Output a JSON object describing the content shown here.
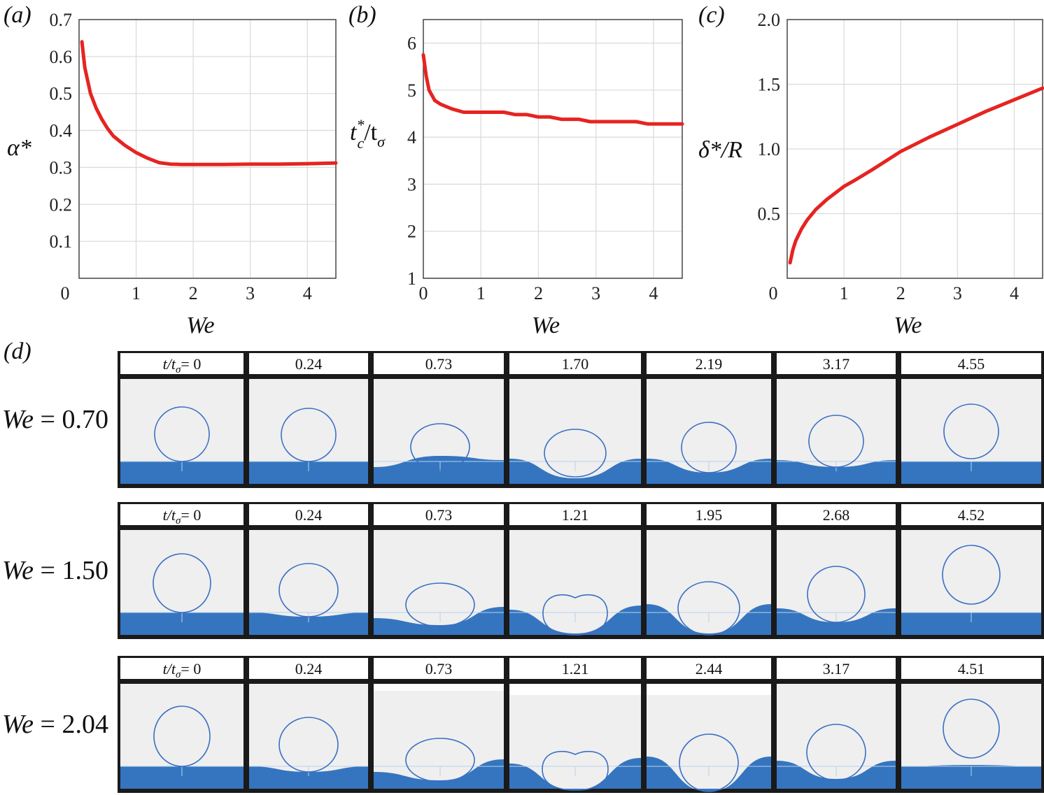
{
  "chart_data": [
    {
      "panel": "(a)",
      "type": "line",
      "xlabel": "We",
      "ylabel": "α*",
      "xlim": [
        0,
        4.5
      ],
      "ylim": [
        0,
        0.7
      ],
      "xticks": [
        "0",
        "1",
        "2",
        "3",
        "4"
      ],
      "yticks": [
        "0.1",
        "0.2",
        "0.3",
        "0.4",
        "0.5",
        "0.6",
        "0.7"
      ],
      "grid": true,
      "series": [
        {
          "color": "#e52421",
          "x": [
            0.05,
            0.1,
            0.2,
            0.3,
            0.4,
            0.5,
            0.6,
            0.8,
            1.0,
            1.2,
            1.4,
            1.6,
            1.8,
            2.0,
            2.5,
            3.0,
            3.5,
            4.0,
            4.5
          ],
          "y": [
            0.64,
            0.57,
            0.5,
            0.46,
            0.43,
            0.405,
            0.385,
            0.36,
            0.34,
            0.325,
            0.313,
            0.309,
            0.308,
            0.308,
            0.308,
            0.309,
            0.309,
            0.31,
            0.312
          ]
        }
      ]
    },
    {
      "panel": "(b)",
      "type": "line",
      "xlabel": "We",
      "ylabel": "tc*/tσ",
      "xlim": [
        0,
        4.5
      ],
      "ylim": [
        1,
        6.5
      ],
      "xticks": [
        "0",
        "1",
        "2",
        "3",
        "4"
      ],
      "yticks": [
        "1",
        "2",
        "3",
        "4",
        "5",
        "6"
      ],
      "grid": true,
      "series": [
        {
          "color": "#e52421",
          "x": [
            0.0,
            0.05,
            0.1,
            0.2,
            0.3,
            0.5,
            0.7,
            1.0,
            1.4,
            1.6,
            1.8,
            2.0,
            2.2,
            2.4,
            2.7,
            2.9,
            3.3,
            3.7,
            3.9,
            4.5
          ],
          "y": [
            5.75,
            5.3,
            5.0,
            4.78,
            4.7,
            4.6,
            4.53,
            4.53,
            4.53,
            4.48,
            4.48,
            4.43,
            4.43,
            4.38,
            4.38,
            4.33,
            4.33,
            4.33,
            4.28,
            4.28
          ]
        }
      ]
    },
    {
      "panel": "(c)",
      "type": "line",
      "xlabel": "We",
      "ylabel": "δ*/R",
      "xlim": [
        0,
        4.5
      ],
      "ylim": [
        0,
        2.0
      ],
      "xticks": [
        "0",
        "1",
        "2",
        "3",
        "4"
      ],
      "yticks": [
        "0.5",
        "1.0",
        "1.5",
        "2.0"
      ],
      "grid": true,
      "series": [
        {
          "color": "#e52421",
          "x": [
            0.05,
            0.1,
            0.15,
            0.25,
            0.35,
            0.5,
            0.7,
            1.0,
            1.2,
            1.5,
            2.0,
            2.5,
            3.0,
            3.5,
            4.0,
            4.5
          ],
          "y": [
            0.12,
            0.22,
            0.29,
            0.38,
            0.45,
            0.53,
            0.61,
            0.71,
            0.76,
            0.84,
            0.98,
            1.09,
            1.19,
            1.29,
            1.38,
            1.47
          ]
        }
      ]
    }
  ],
  "panel_d": {
    "letter": "(d)",
    "rows": [
      {
        "we_label": "We = 0.70",
        "times": [
          "t/tσ= 0",
          "0.24",
          "0.73",
          "1.70",
          "2.19",
          "3.17",
          "4.55"
        ],
        "frames": [
          {
            "gray_top": 0,
            "pool": [
              0,
              0,
              0
            ],
            "drop": {
              "bottom": 0,
              "w": 78,
              "h": 78,
              "shift": 0
            }
          },
          {
            "gray_top": 0,
            "pool": [
              0,
              0,
              0
            ],
            "drop": {
              "bottom": 0,
              "w": 78,
              "h": 76,
              "shift": 0
            }
          },
          {
            "gray_top": 0,
            "pool": [
              8,
              -8,
              -2
            ],
            "drop": {
              "bottom": -12,
              "w": 84,
              "h": 66,
              "shift": 2
            }
          },
          {
            "gray_top": 0,
            "pool": [
              -4,
              24,
              -4
            ],
            "drop": {
              "bottom": -22,
              "w": 88,
              "h": 68,
              "shift": 0
            }
          },
          {
            "gray_top": 0,
            "pool": [
              -4,
              16,
              -4
            ],
            "drop": {
              "bottom": -16,
              "w": 78,
              "h": 72,
              "shift": 0
            }
          },
          {
            "gray_top": 0,
            "pool": [
              -2,
              8,
              -2
            ],
            "drop": {
              "bottom": -8,
              "w": 78,
              "h": 74,
              "shift": 0
            }
          },
          {
            "gray_top": 0,
            "pool": [
              0,
              0,
              0
            ],
            "drop": {
              "bottom": 4,
              "w": 78,
              "h": 78,
              "shift": 0
            }
          }
        ]
      },
      {
        "we_label": "We = 1.50",
        "times": [
          "t/tσ= 0",
          "0.24",
          "0.73",
          "1.21",
          "1.95",
          "2.68",
          "4.52"
        ],
        "frames": [
          {
            "gray_top": 0,
            "pool": [
              0,
              0,
              0
            ],
            "drop": {
              "bottom": 0,
              "w": 82,
              "h": 84,
              "shift": 0
            }
          },
          {
            "gray_top": 0,
            "pool": [
              0,
              6,
              0
            ],
            "drop": {
              "bottom": -6,
              "w": 84,
              "h": 76,
              "shift": 0
            }
          },
          {
            "gray_top": 0,
            "pool": [
              8,
              18,
              -8
            ],
            "drop": {
              "bottom": -20,
              "w": 98,
              "h": 62,
              "shift": 2
            }
          },
          {
            "gray_top": 0,
            "pool": [
              -4,
              30,
              -10
            ],
            "drop": {
              "bottom": -32,
              "w": 92,
              "h": 62,
              "shift": 0,
              "dimple": true
            }
          },
          {
            "gray_top": 0,
            "pool": [
              -12,
              30,
              -12
            ],
            "drop": {
              "bottom": -32,
              "w": 88,
              "h": 76,
              "shift": 0
            }
          },
          {
            "gray_top": 0,
            "pool": [
              -6,
              14,
              -6
            ],
            "drop": {
              "bottom": -14,
              "w": 82,
              "h": 80,
              "shift": 0
            }
          },
          {
            "gray_top": 0,
            "pool": [
              0,
              0,
              0
            ],
            "drop": {
              "bottom": 12,
              "w": 82,
              "h": 84,
              "shift": 0
            }
          }
        ]
      },
      {
        "we_label": "We = 2.04",
        "times": [
          "t/tσ= 0",
          "0.24",
          "0.73",
          "1.21",
          "2.44",
          "3.17",
          "4.51"
        ],
        "frames": [
          {
            "gray_top": 0,
            "pool": [
              0,
              0,
              0
            ],
            "drop": {
              "bottom": 0,
              "w": 80,
              "h": 86,
              "shift": 0
            }
          },
          {
            "gray_top": 0,
            "pool": [
              0,
              8,
              0
            ],
            "drop": {
              "bottom": -8,
              "w": 84,
              "h": 78,
              "shift": 0
            }
          },
          {
            "gray_top": 10,
            "pool": [
              8,
              20,
              -10
            ],
            "drop": {
              "bottom": -22,
              "w": 98,
              "h": 62,
              "shift": 2
            }
          },
          {
            "gray_top": 16,
            "pool": [
              -4,
              34,
              -12
            ],
            "drop": {
              "bottom": -34,
              "w": 94,
              "h": 60,
              "shift": 0,
              "dimple": true
            }
          },
          {
            "gray_top": 16,
            "pool": [
              -14,
              36,
              -14
            ],
            "drop": {
              "bottom": -36,
              "w": 84,
              "h": 82,
              "shift": 0
            }
          },
          {
            "gray_top": 0,
            "pool": [
              -8,
              18,
              -8
            ],
            "drop": {
              "bottom": -20,
              "w": 84,
              "h": 80,
              "shift": 0
            }
          },
          {
            "gray_top": 0,
            "pool": [
              0,
              -2,
              0
            ],
            "drop": {
              "bottom": 12,
              "w": 80,
              "h": 84,
              "shift": 0
            }
          }
        ]
      }
    ]
  }
}
